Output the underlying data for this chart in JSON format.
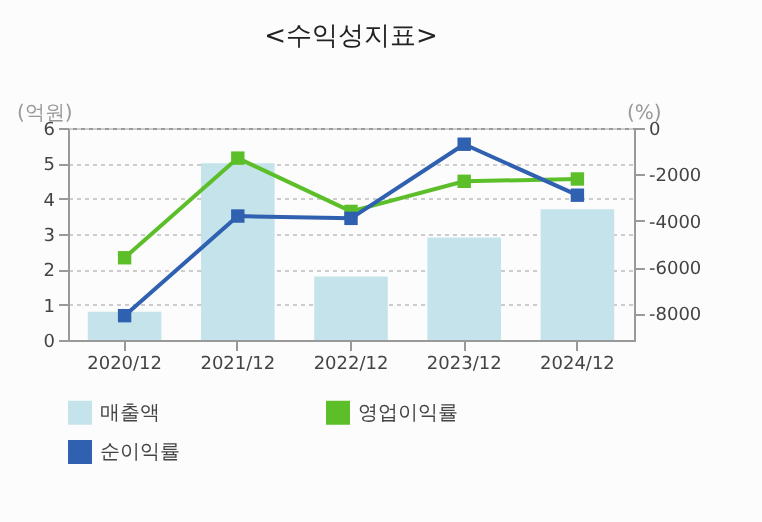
{
  "chart_data": {
    "type": "bar",
    "title": "<수익성지표>",
    "ylabel": "(억원)",
    "y2label": "(%)",
    "categories": [
      "2020/12",
      "2021/12",
      "2022/12",
      "2023/12",
      "2024/12"
    ],
    "series": [
      {
        "name": "매출액",
        "color": "#c5e3ea",
        "values": [
          0.8,
          5.0,
          1.8,
          2.9,
          3.7
        ]
      },
      {
        "name": "영업이익률",
        "type": "line",
        "axis": "y2",
        "color": "#5cbf2a",
        "values": [
          -5600,
          -1300,
          -3600,
          -2300,
          -2200
        ]
      },
      {
        "name": "순이익률",
        "type": "line",
        "axis": "y2",
        "color": "#3060b0",
        "values": [
          -8100,
          -3800,
          -3900,
          -700,
          -2900
        ]
      }
    ],
    "ylim": [
      0,
      6
    ],
    "yticks": [
      0,
      1,
      2,
      3,
      4,
      5,
      6
    ],
    "y2lim": [
      -9150,
      0
    ],
    "y2ticks": [
      0,
      -2000,
      -4000,
      -6000,
      -8000
    ],
    "grid": "y",
    "legend": "bottom",
    "marker": "square",
    "line_style": "solid"
  }
}
